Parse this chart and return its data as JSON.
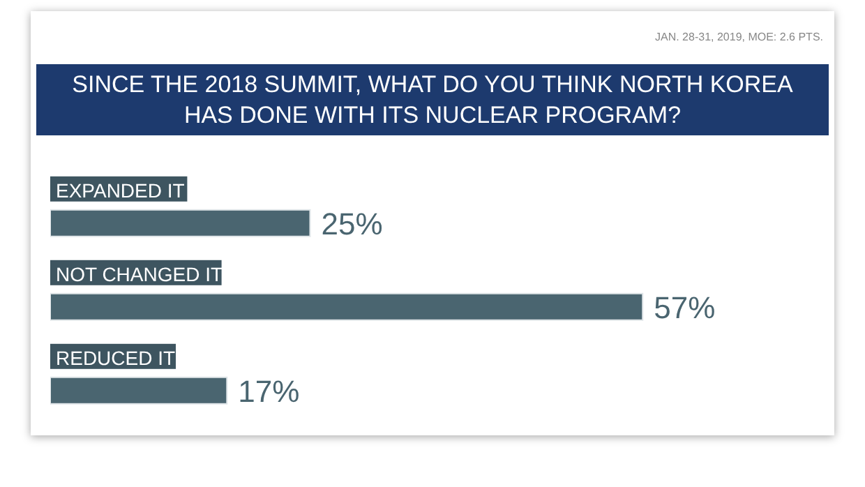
{
  "chart_data": {
    "type": "bar",
    "orientation": "horizontal",
    "title": "SINCE THE 2018 SUMMIT, WHAT DO YOU THINK NORTH KOREA HAS DONE WITH ITS NUCLEAR PROGRAM?",
    "annotations": [
      "JAN. 28-31, 2019, MOE: 2.6 PTS."
    ],
    "categories": [
      "EXPANDED IT",
      "NOT CHANGED IT",
      "REDUCED IT"
    ],
    "values": [
      25,
      57,
      17
    ],
    "value_labels": [
      "25%",
      "57%",
      "17%"
    ],
    "color": "#4a6570"
  }
}
